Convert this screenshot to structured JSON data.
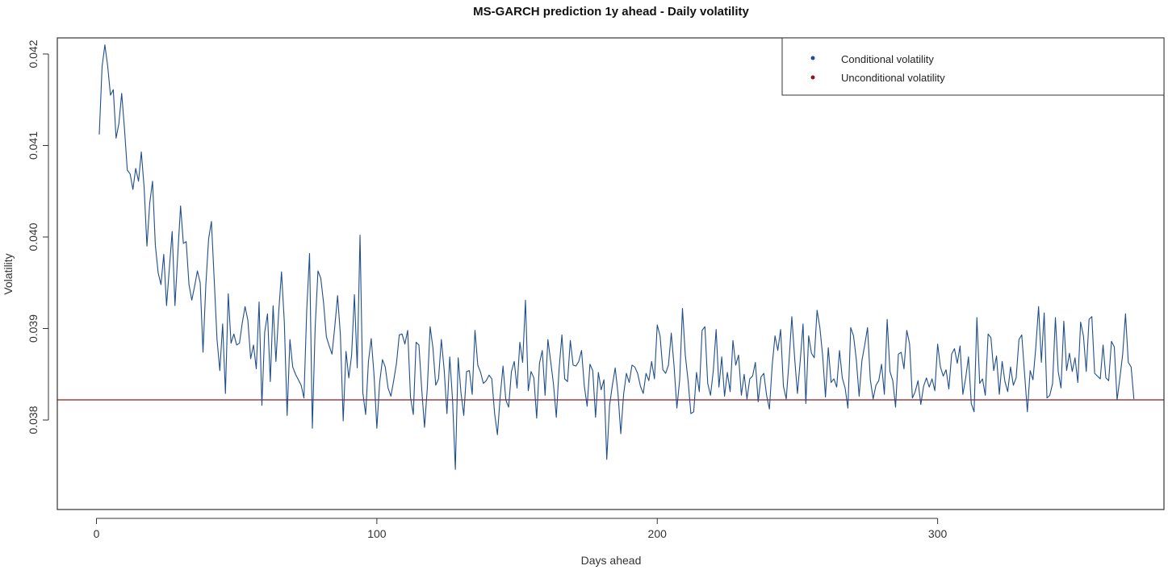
{
  "chart_data": {
    "type": "line",
    "title": "MS-GARCH prediction 1y ahead - Daily volatility",
    "xlabel": "Days ahead",
    "ylabel": "Volatility",
    "xlim": [
      1,
      365
    ],
    "ylim": [
      0.0371,
      0.0423
    ],
    "x_ticks": [
      0,
      100,
      200,
      300
    ],
    "x_tick_labels": [
      "0",
      "100",
      "200",
      "300"
    ],
    "y_ticks": [
      0.038,
      0.039,
      0.04,
      0.041,
      0.042
    ],
    "y_tick_labels": [
      "0.038",
      "0.039",
      "0.040",
      "0.041",
      "0.042"
    ],
    "grid": false,
    "legend_position": "top-right",
    "series": [
      {
        "name": "Conditional volatility",
        "color": "#1f4e8c",
        "x_start": 1,
        "x_step": 1,
        "values": [
          0.04112,
          0.04186,
          0.0421,
          0.04187,
          0.04155,
          0.04161,
          0.04108,
          0.04124,
          0.04157,
          0.04118,
          0.04073,
          0.04069,
          0.04052,
          0.04075,
          0.04061,
          0.04093,
          0.04054,
          0.0399,
          0.04037,
          0.04061,
          0.03991,
          0.03961,
          0.03948,
          0.03981,
          0.03925,
          0.03966,
          0.04006,
          0.03925,
          0.03981,
          0.04034,
          0.03993,
          0.03995,
          0.03948,
          0.03931,
          0.03946,
          0.03963,
          0.0395,
          0.03874,
          0.03947,
          0.03998,
          0.04017,
          0.03953,
          0.03888,
          0.03854,
          0.03905,
          0.03829,
          0.03938,
          0.03884,
          0.03894,
          0.03882,
          0.03884,
          0.03906,
          0.03924,
          0.03909,
          0.03867,
          0.03882,
          0.03856,
          0.03929,
          0.03816,
          0.03896,
          0.03916,
          0.03842,
          0.03925,
          0.03864,
          0.03918,
          0.03962,
          0.03907,
          0.03805,
          0.03888,
          0.03858,
          0.0385,
          0.03844,
          0.03838,
          0.03824,
          0.03921,
          0.03982,
          0.03791,
          0.03901,
          0.03963,
          0.03955,
          0.03928,
          0.03891,
          0.03881,
          0.03872,
          0.03902,
          0.03936,
          0.03893,
          0.03799,
          0.03875,
          0.03846,
          0.03871,
          0.03937,
          0.03857,
          0.04002,
          0.0383,
          0.03806,
          0.03864,
          0.03889,
          0.03849,
          0.03791,
          0.03841,
          0.03866,
          0.03858,
          0.03835,
          0.03826,
          0.03843,
          0.03862,
          0.03893,
          0.03894,
          0.03883,
          0.03898,
          0.03825,
          0.03806,
          0.03885,
          0.03882,
          0.03834,
          0.03792,
          0.03835,
          0.03902,
          0.03879,
          0.03838,
          0.03845,
          0.03888,
          0.03855,
          0.03807,
          0.03869,
          0.03822,
          0.03746,
          0.03868,
          0.0383,
          0.03805,
          0.03853,
          0.03854,
          0.03828,
          0.03898,
          0.0386,
          0.03852,
          0.0384,
          0.03843,
          0.03849,
          0.03845,
          0.03807,
          0.03784,
          0.03826,
          0.03859,
          0.03822,
          0.03814,
          0.03853,
          0.03864,
          0.03835,
          0.03885,
          0.03863,
          0.03931,
          0.03832,
          0.03853,
          0.03846,
          0.03802,
          0.03862,
          0.03876,
          0.03827,
          0.03888,
          0.03864,
          0.03839,
          0.03803,
          0.03856,
          0.03893,
          0.03845,
          0.03842,
          0.03887,
          0.0386,
          0.03859,
          0.03864,
          0.03876,
          0.03837,
          0.03815,
          0.03861,
          0.03854,
          0.03803,
          0.03852,
          0.03833,
          0.03844,
          0.03757,
          0.03816,
          0.03838,
          0.03857,
          0.03829,
          0.03785,
          0.03828,
          0.03851,
          0.03841,
          0.0386,
          0.03858,
          0.03851,
          0.03837,
          0.03829,
          0.03851,
          0.03843,
          0.03864,
          0.03845,
          0.03904,
          0.03892,
          0.03855,
          0.03851,
          0.0386,
          0.03895,
          0.03859,
          0.03813,
          0.03844,
          0.03922,
          0.03871,
          0.03843,
          0.03807,
          0.03809,
          0.03852,
          0.03831,
          0.03898,
          0.03902,
          0.0384,
          0.03827,
          0.03854,
          0.03899,
          0.03836,
          0.03869,
          0.03826,
          0.03852,
          0.03831,
          0.03887,
          0.0386,
          0.03871,
          0.03827,
          0.0385,
          0.03823,
          0.03845,
          0.03848,
          0.03863,
          0.0382,
          0.03847,
          0.03851,
          0.03827,
          0.03812,
          0.0386,
          0.03892,
          0.03876,
          0.03899,
          0.03837,
          0.03823,
          0.03864,
          0.03913,
          0.03868,
          0.03829,
          0.03865,
          0.03905,
          0.03818,
          0.03892,
          0.03873,
          0.03868,
          0.0392,
          0.03901,
          0.0387,
          0.03825,
          0.03879,
          0.03841,
          0.03845,
          0.03836,
          0.03876,
          0.03846,
          0.03835,
          0.03813,
          0.03901,
          0.03892,
          0.03866,
          0.03826,
          0.03865,
          0.03882,
          0.03901,
          0.03844,
          0.03823,
          0.03838,
          0.03843,
          0.03861,
          0.03828,
          0.0391,
          0.03853,
          0.03843,
          0.03814,
          0.03872,
          0.03874,
          0.03856,
          0.03898,
          0.03883,
          0.03824,
          0.03831,
          0.03843,
          0.03817,
          0.03837,
          0.03846,
          0.03836,
          0.03845,
          0.03832,
          0.03883,
          0.03858,
          0.03848,
          0.03855,
          0.03834,
          0.03872,
          0.03878,
          0.03862,
          0.03881,
          0.03828,
          0.03846,
          0.03869,
          0.03818,
          0.03809,
          0.03912,
          0.0384,
          0.03845,
          0.03827,
          0.03894,
          0.0389,
          0.03854,
          0.0387,
          0.03828,
          0.03864,
          0.03842,
          0.03831,
          0.03858,
          0.03838,
          0.03846,
          0.03888,
          0.03893,
          0.03851,
          0.03809,
          0.03854,
          0.03844,
          0.03879,
          0.03924,
          0.03863,
          0.03917,
          0.03824,
          0.03827,
          0.0384,
          0.03912,
          0.03853,
          0.03835,
          0.03908,
          0.03854,
          0.03873,
          0.03853,
          0.03868,
          0.03841,
          0.03907,
          0.03892,
          0.03853,
          0.0391,
          0.03913,
          0.03851,
          0.03848,
          0.03845,
          0.03882,
          0.03846,
          0.03843,
          0.03886,
          0.0388,
          0.03822,
          0.03846,
          0.03872,
          0.03916,
          0.03863,
          0.03858,
          0.03823
        ]
      },
      {
        "name": "Unconditional volatility",
        "color": "#8b1a1a",
        "value": 0.03822
      }
    ]
  }
}
